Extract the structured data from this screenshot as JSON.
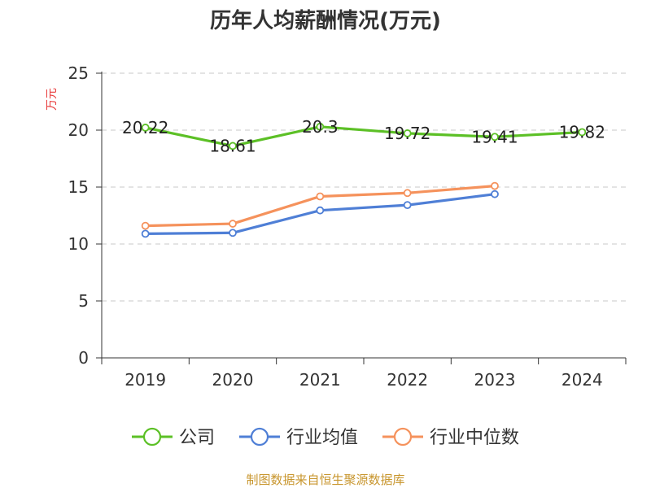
{
  "chart_data": {
    "type": "line",
    "title": "历年人均薪酬情况(万元)",
    "ylabel": "万元",
    "xlabel": "",
    "categories": [
      "2019",
      "2020",
      "2021",
      "2022",
      "2023",
      "2024"
    ],
    "ylim": [
      0,
      25
    ],
    "yticks": [
      0,
      5,
      10,
      15,
      20,
      25
    ],
    "grid": true,
    "legend_position": "bottom",
    "series": [
      {
        "name": "公司",
        "color": "#5CC026",
        "values": [
          20.22,
          18.61,
          20.3,
          19.72,
          19.41,
          19.82
        ],
        "labels": [
          "20.22",
          "18.61",
          "20.3",
          "19.72",
          "19.41",
          "19.82"
        ]
      },
      {
        "name": "行业均值",
        "color": "#4F7FD6",
        "values": [
          10.9,
          10.98,
          12.95,
          13.42,
          14.38,
          null
        ]
      },
      {
        "name": "行业中位数",
        "color": "#F5925C",
        "values": [
          11.6,
          11.78,
          14.18,
          14.48,
          15.1,
          null
        ]
      }
    ],
    "ylabel_color": "#E83A3A"
  },
  "source": {
    "text": "制图数据来自恒生聚源数据库",
    "color": "#C8962E"
  }
}
